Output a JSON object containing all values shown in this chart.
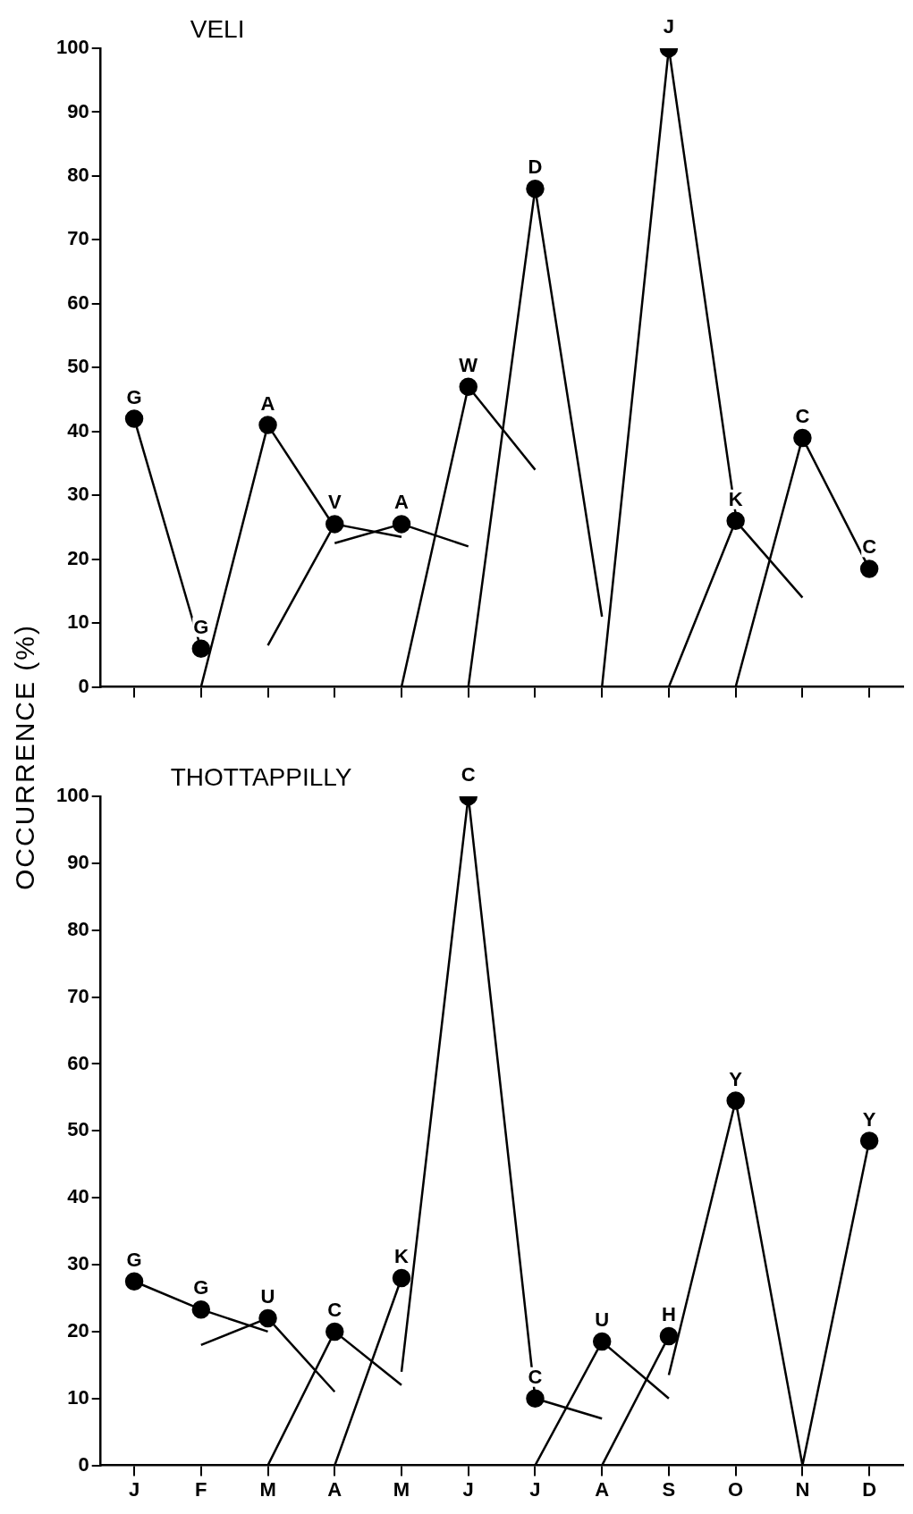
{
  "chart_data": [
    {
      "type": "line",
      "title": "VELI",
      "ylabel": "OCCURRENCE (%)",
      "categories": [
        null,
        null,
        null,
        null,
        null,
        null,
        null,
        null,
        null,
        null,
        null,
        null
      ],
      "ylim": [
        0,
        100
      ],
      "yticks": [
        0,
        10,
        20,
        30,
        40,
        50,
        60,
        70,
        80,
        90,
        100
      ],
      "grid": false,
      "legend": false,
      "series": [
        {
          "type": "scatter",
          "marker": "circle",
          "color": "#000000",
          "values": [
            42,
            6,
            41,
            25.5,
            25.5,
            47,
            78,
            null,
            100,
            26,
            39,
            18.5
          ],
          "value_labels": [
            "G",
            "G",
            "A",
            "V",
            "A",
            "W",
            "D",
            null,
            "J",
            "K",
            "C",
            "C"
          ]
        },
        {
          "color": "#000000",
          "marker": "none",
          "values": [
            42,
            6,
            null,
            null,
            null,
            null,
            null,
            null,
            null,
            null,
            null,
            null
          ]
        },
        {
          "color": "#000000",
          "marker": "none",
          "values": [
            null,
            0,
            41,
            25,
            null,
            null,
            null,
            null,
            null,
            null,
            null,
            null
          ]
        },
        {
          "color": "#000000",
          "marker": "none",
          "values": [
            null,
            null,
            6.5,
            25.5,
            23.5,
            null,
            null,
            null,
            null,
            null,
            null,
            null
          ]
        },
        {
          "color": "#000000",
          "marker": "none",
          "values": [
            null,
            null,
            null,
            22.5,
            25.5,
            22,
            null,
            null,
            null,
            null,
            null,
            null
          ]
        },
        {
          "color": "#000000",
          "marker": "none",
          "values": [
            null,
            null,
            null,
            null,
            0,
            47,
            34,
            null,
            null,
            null,
            null,
            null
          ]
        },
        {
          "color": "#000000",
          "marker": "none",
          "values": [
            null,
            null,
            null,
            null,
            null,
            0,
            78,
            11,
            null,
            null,
            null,
            null
          ]
        },
        {
          "color": "#000000",
          "marker": "none",
          "values": [
            null,
            null,
            null,
            null,
            null,
            null,
            null,
            0,
            100,
            27,
            null,
            null
          ]
        },
        {
          "color": "#000000",
          "marker": "none",
          "values": [
            null,
            null,
            null,
            null,
            null,
            null,
            null,
            null,
            0,
            26,
            14,
            null
          ]
        },
        {
          "color": "#000000",
          "marker": "none",
          "values": [
            null,
            null,
            null,
            null,
            null,
            null,
            null,
            null,
            null,
            0,
            39,
            18.5
          ]
        }
      ]
    },
    {
      "type": "line",
      "title": "THOTTAPPILLY",
      "categories": [
        "J",
        "F",
        "M",
        "A",
        "M",
        "J",
        "J",
        "A",
        "S",
        "O",
        "N",
        "D"
      ],
      "ylim": [
        0,
        100
      ],
      "yticks": [
        0,
        10,
        20,
        30,
        40,
        50,
        60,
        70,
        80,
        90,
        100
      ],
      "grid": false,
      "legend": false,
      "series": [
        {
          "type": "scatter",
          "marker": "circle",
          "color": "#000000",
          "values": [
            27.5,
            23.3,
            22,
            20,
            28,
            100,
            10,
            18.5,
            19.3,
            54.5,
            null,
            48.5
          ],
          "value_labels": [
            "G",
            "G",
            "U",
            "C",
            "K",
            "C",
            "C",
            "U",
            "H",
            "Y",
            null,
            "Y"
          ]
        },
        {
          "color": "#000000",
          "marker": "none",
          "values": [
            27.5,
            23.3,
            20,
            null,
            null,
            null,
            null,
            null,
            null,
            null,
            null,
            null
          ]
        },
        {
          "color": "#000000",
          "marker": "none",
          "values": [
            null,
            18,
            22,
            11,
            null,
            null,
            null,
            null,
            null,
            null,
            null,
            null
          ]
        },
        {
          "color": "#000000",
          "marker": "none",
          "values": [
            null,
            null,
            0,
            20,
            12,
            null,
            null,
            null,
            null,
            null,
            null,
            null
          ]
        },
        {
          "color": "#000000",
          "marker": "none",
          "values": [
            null,
            null,
            null,
            0,
            28,
            null,
            null,
            null,
            null,
            null,
            null,
            null
          ]
        },
        {
          "color": "#000000",
          "marker": "none",
          "values": [
            null,
            null,
            null,
            null,
            14,
            100,
            10,
            7,
            null,
            null,
            null,
            null
          ]
        },
        {
          "color": "#000000",
          "marker": "none",
          "values": [
            null,
            null,
            null,
            null,
            null,
            null,
            0,
            18.5,
            10,
            null,
            null,
            null
          ]
        },
        {
          "color": "#000000",
          "marker": "none",
          "values": [
            null,
            null,
            null,
            null,
            null,
            null,
            null,
            0,
            19.3,
            null,
            null,
            null
          ]
        },
        {
          "color": "#000000",
          "marker": "none",
          "values": [
            null,
            null,
            null,
            null,
            null,
            null,
            null,
            null,
            13.5,
            54.5,
            0,
            48.5
          ]
        }
      ]
    }
  ]
}
